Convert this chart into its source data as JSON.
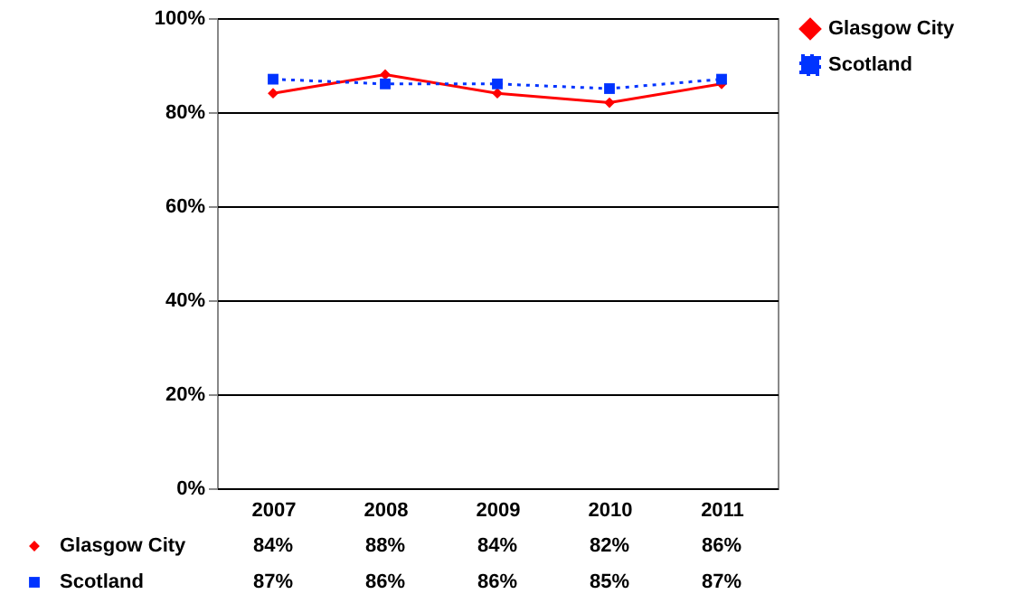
{
  "chart_data": {
    "type": "line",
    "categories": [
      "2007",
      "2008",
      "2009",
      "2010",
      "2011"
    ],
    "series": [
      {
        "name": "Glasgow City",
        "color": "#ff0000",
        "marker": "diamond",
        "line_style": "solid",
        "values": [
          84,
          88,
          84,
          82,
          86
        ],
        "value_labels": [
          "84%",
          "88%",
          "84%",
          "82%",
          "86%"
        ]
      },
      {
        "name": "Scotland",
        "color": "#0033ff",
        "marker": "square",
        "line_style": "dotted",
        "values": [
          87,
          86,
          86,
          85,
          87
        ],
        "value_labels": [
          "87%",
          "86%",
          "86%",
          "85%",
          "87%"
        ]
      }
    ],
    "ylim": [
      0,
      100
    ],
    "yticks": [
      {
        "value": 0,
        "label": "0%"
      },
      {
        "value": 20,
        "label": "20%"
      },
      {
        "value": 40,
        "label": "40%"
      },
      {
        "value": 60,
        "label": "60%"
      },
      {
        "value": 80,
        "label": "80%"
      },
      {
        "value": 100,
        "label": "100%"
      }
    ],
    "grid": "y",
    "legend": "right"
  }
}
